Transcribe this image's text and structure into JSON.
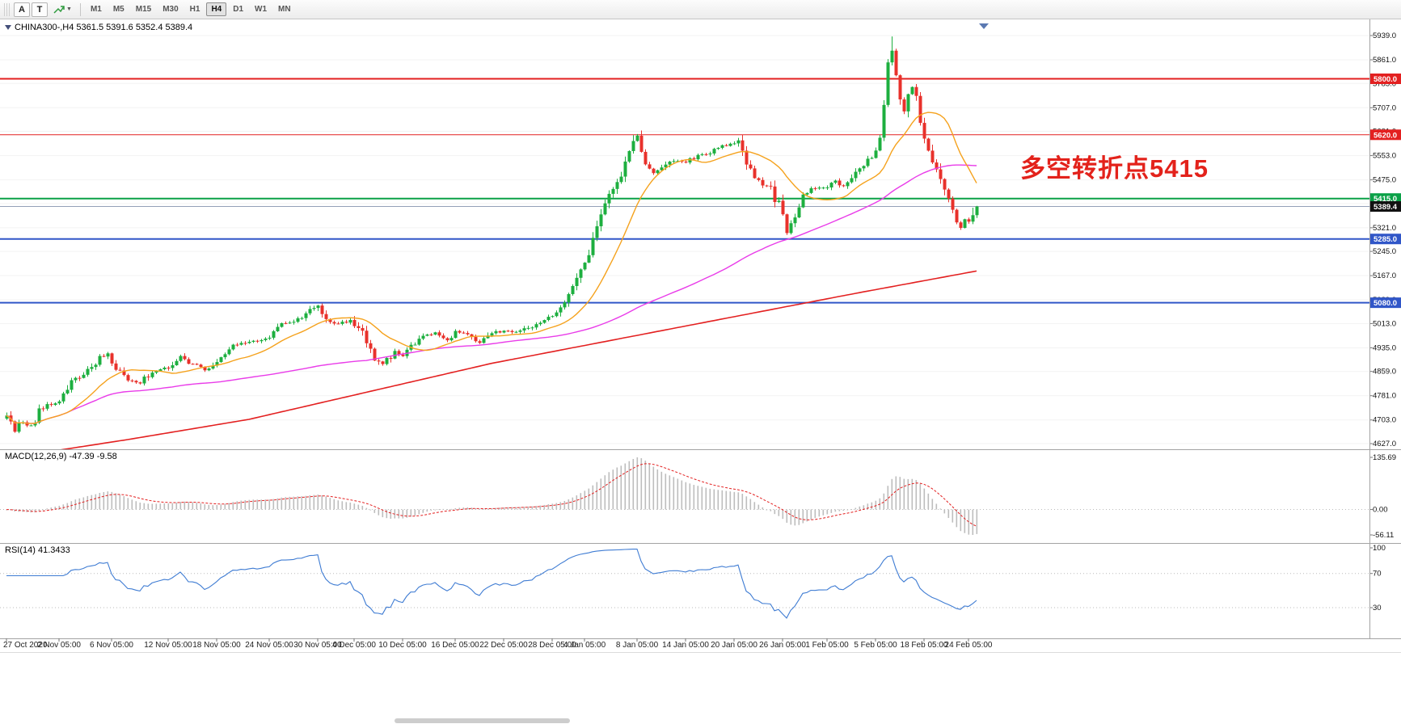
{
  "toolbar": {
    "tool_a": "A",
    "tool_t": "T",
    "timeframes": [
      "M1",
      "M5",
      "M15",
      "M30",
      "H1",
      "H4",
      "D1",
      "W1",
      "MN"
    ],
    "active_timeframe": "H4"
  },
  "colors": {
    "up": "#1daf3f",
    "down": "#e8312b",
    "macd_hist": "#bdbdbd",
    "macd_signal": "#e32020",
    "rsi_line": "#3f7cd3",
    "grid": "#f3f3f3",
    "separator": "#a3a3a3"
  },
  "chart": {
    "title": "CHINA300-,H4 5361.5 5391.6 5352.4 5389.4",
    "symbol": "CHINA300-",
    "period": "H4",
    "ohlc": {
      "open": "5361.5",
      "high": "5391.6",
      "low": "5352.4",
      "close": "5389.4"
    },
    "annotation": {
      "text": "多空转折点5415",
      "color": "#e3221b"
    },
    "y_ticks": [
      "5939.0",
      "5861.0",
      "5785.0",
      "5707.0",
      "5631.0",
      "5553.0",
      "5475.0",
      "5399.0",
      "5321.0",
      "5245.0",
      "5167.0",
      "5089.0",
      "5013.0",
      "4935.0",
      "4859.0",
      "4781.0",
      "4703.0",
      "4627.0"
    ],
    "hlines": [
      {
        "value": 5800.0,
        "label": "5800.0",
        "color": "#e32020",
        "width": 2
      },
      {
        "value": 5620.0,
        "label": "5620.0",
        "color": "#e32020",
        "width": 1
      },
      {
        "value": 5415.0,
        "label": "5415.0",
        "color": "#0aa147",
        "width": 2
      },
      {
        "value": 5285.0,
        "label": "5285.0",
        "color": "#3056c8",
        "width": 2
      },
      {
        "value": 5080.0,
        "label": "5080.0",
        "color": "#3056c8",
        "width": 2
      }
    ],
    "current_price": {
      "value": 5389.4,
      "label": "5389.4",
      "tag_bg": "#111111",
      "line_color": "#94a0b8"
    },
    "x_labels": [
      {
        "text": "27 Oct 2020",
        "bar": 0
      },
      {
        "text": "2 Nov 05:00",
        "bar": 13
      },
      {
        "text": "6 Nov 05:00",
        "bar": 26
      },
      {
        "text": "12 Nov 05:00",
        "bar": 40
      },
      {
        "text": "18 Nov 05:00",
        "bar": 52
      },
      {
        "text": "24 Nov 05:00",
        "bar": 65
      },
      {
        "text": "30 Nov 05:00",
        "bar": 77
      },
      {
        "text": "4 Dec 05:00",
        "bar": 86
      },
      {
        "text": "10 Dec 05:00",
        "bar": 98
      },
      {
        "text": "16 Dec 05:00",
        "bar": 111
      },
      {
        "text": "22 Dec 05:00",
        "bar": 123
      },
      {
        "text": "28 Dec 05:00",
        "bar": 135
      },
      {
        "text": "4 Jan 05:00",
        "bar": 143
      },
      {
        "text": "8 Jan 05:00",
        "bar": 156
      },
      {
        "text": "14 Jan 05:00",
        "bar": 168
      },
      {
        "text": "20 Jan 05:00",
        "bar": 180
      },
      {
        "text": "26 Jan 05:00",
        "bar": 192
      },
      {
        "text": "1 Feb 05:00",
        "bar": 203
      },
      {
        "text": "5 Feb 05:00",
        "bar": 215
      },
      {
        "text": "18 Feb 05:00",
        "bar": 227
      },
      {
        "text": "24 Feb 05:00",
        "bar": 238
      }
    ]
  },
  "macd": {
    "label": "MACD(12,26,9) -47.39 -9.58",
    "ticks": [
      "135.69",
      "0.00",
      "-56.11"
    ]
  },
  "rsi": {
    "label": "RSI(14) 41.3433",
    "ticks": [
      "100",
      "70",
      "30"
    ],
    "levels": [
      70,
      30
    ]
  },
  "chart_data": {
    "type": "candlestick",
    "symbol": "CHINA300-",
    "timeframe": "H4",
    "bars": 241,
    "price_range": {
      "top": 5939.0,
      "bottom": 4627.0
    },
    "last_bar": {
      "open": 5361.5,
      "high": 5391.6,
      "low": 5352.4,
      "close": 5389.4
    },
    "prev_close": 5361.5,
    "peak_high": 5936,
    "close_waypoints": [
      [
        0,
        4710
      ],
      [
        2,
        4668
      ],
      [
        4,
        4700
      ],
      [
        6,
        4682
      ],
      [
        8,
        4732
      ],
      [
        10,
        4750
      ],
      [
        13,
        4762
      ],
      [
        16,
        4822
      ],
      [
        20,
        4860
      ],
      [
        23,
        4902
      ],
      [
        25,
        4915
      ],
      [
        27,
        4872
      ],
      [
        30,
        4835
      ],
      [
        33,
        4822
      ],
      [
        36,
        4860
      ],
      [
        40,
        4872
      ],
      [
        43,
        4905
      ],
      [
        46,
        4882
      ],
      [
        49,
        4864
      ],
      [
        52,
        4896
      ],
      [
        56,
        4940
      ],
      [
        60,
        4955
      ],
      [
        63,
        4958
      ],
      [
        65,
        4970
      ],
      [
        68,
        5008
      ],
      [
        72,
        5025
      ],
      [
        75,
        5058
      ],
      [
        77,
        5075
      ],
      [
        79,
        5022
      ],
      [
        82,
        5012
      ],
      [
        85,
        5025
      ],
      [
        88,
        4982
      ],
      [
        91,
        4905
      ],
      [
        93,
        4880
      ],
      [
        96,
        4922
      ],
      [
        98,
        4912
      ],
      [
        100,
        4938
      ],
      [
        103,
        4975
      ],
      [
        106,
        4985
      ],
      [
        109,
        4962
      ],
      [
        111,
        4985
      ],
      [
        114,
        4975
      ],
      [
        117,
        4952
      ],
      [
        120,
        4980
      ],
      [
        123,
        4992
      ],
      [
        126,
        4985
      ],
      [
        129,
        5000
      ],
      [
        132,
        5018
      ],
      [
        135,
        5040
      ],
      [
        137,
        5070
      ],
      [
        139,
        5105
      ],
      [
        141,
        5150
      ],
      [
        143,
        5205
      ],
      [
        145,
        5290
      ],
      [
        147,
        5370
      ],
      [
        149,
        5430
      ],
      [
        151,
        5470
      ],
      [
        153,
        5530
      ],
      [
        155,
        5590
      ],
      [
        156,
        5615
      ],
      [
        158,
        5540
      ],
      [
        160,
        5500
      ],
      [
        162,
        5512
      ],
      [
        165,
        5540
      ],
      [
        168,
        5532
      ],
      [
        171,
        5552
      ],
      [
        174,
        5560
      ],
      [
        177,
        5585
      ],
      [
        180,
        5595
      ],
      [
        181,
        5605
      ],
      [
        183,
        5540
      ],
      [
        185,
        5482
      ],
      [
        187,
        5460
      ],
      [
        189,
        5445
      ],
      [
        191,
        5392
      ],
      [
        193,
        5305
      ],
      [
        195,
        5370
      ],
      [
        197,
        5430
      ],
      [
        199,
        5445
      ],
      [
        201,
        5450
      ],
      [
        203,
        5455
      ],
      [
        205,
        5470
      ],
      [
        207,
        5455
      ],
      [
        209,
        5490
      ],
      [
        211,
        5515
      ],
      [
        213,
        5540
      ],
      [
        215,
        5565
      ],
      [
        216,
        5610
      ],
      [
        217,
        5700
      ],
      [
        218,
        5845
      ],
      [
        219,
        5895
      ],
      [
        220,
        5800
      ],
      [
        221,
        5722
      ],
      [
        222,
        5692
      ],
      [
        223,
        5740
      ],
      [
        224,
        5772
      ],
      [
        225,
        5740
      ],
      [
        226,
        5660
      ],
      [
        227,
        5600
      ],
      [
        228,
        5560
      ],
      [
        229,
        5530
      ],
      [
        230,
        5500
      ],
      [
        231,
        5465
      ],
      [
        232,
        5440
      ],
      [
        233,
        5405
      ],
      [
        234,
        5370
      ],
      [
        235,
        5340
      ],
      [
        236,
        5322
      ],
      [
        237,
        5355
      ],
      [
        238,
        5340
      ],
      [
        239,
        5361.5
      ],
      [
        240,
        5389.4
      ]
    ],
    "ma_fast": {
      "period": 16,
      "color": "#f5a21d"
    },
    "ma_mid": {
      "period": 90,
      "color": "#e93ce9"
    },
    "ma_slow": {
      "color": "#e32020",
      "waypoints": [
        [
          0,
          4580
        ],
        [
          30,
          4640
        ],
        [
          60,
          4705
        ],
        [
          90,
          4795
        ],
        [
          120,
          4885
        ],
        [
          150,
          4960
        ],
        [
          180,
          5035
        ],
        [
          210,
          5110
        ],
        [
          240,
          5182
        ]
      ]
    }
  }
}
